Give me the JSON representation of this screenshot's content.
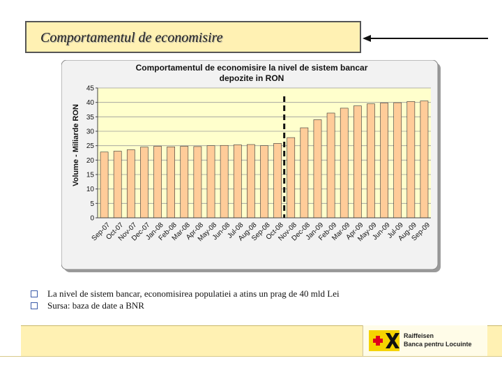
{
  "slide": {
    "title": "Comportamentul de economisire",
    "bullets": [
      "La nivel de sistem bancar, economisirea populatiei a atins un prag de 40 mld Lei",
      "Sursa: baza de date a BNR"
    ],
    "logo": {
      "name": "Raiffeisen",
      "subtitle": "Banca pentru Locuinte"
    }
  },
  "colors": {
    "title_bg": "#fff1b3",
    "bar_fill": "#ffcc99",
    "plot_bg": "#ffffcc",
    "accent_yellow": "#f5d400"
  },
  "chart_data": {
    "type": "bar",
    "title": "Comportamentul de economisire la nivel de sistem bancar",
    "subtitle": "depozite in RON",
    "xlabel": "",
    "ylabel": "Volume - Miliarde RON",
    "ylim": [
      0,
      45
    ],
    "yticks": [
      0,
      5,
      10,
      15,
      20,
      25,
      30,
      35,
      40,
      45
    ],
    "grid": true,
    "legend": "none",
    "marker_after_category": "Oct-08",
    "categories": [
      "Sep-07",
      "Oct-07",
      "Nov-07",
      "Dec-07",
      "Jan-08",
      "Feb-08",
      "Mar-08",
      "Apr-08",
      "May-08",
      "Jun-08",
      "Jul-08",
      "Aug-08",
      "Sep-08",
      "Oct-08",
      "Nov-08",
      "Dec-08",
      "Jan-09",
      "Feb-09",
      "Mar-09",
      "Apr-09",
      "May-09",
      "Jun-09",
      "Jul-09",
      "Aug-09",
      "Sep-09"
    ],
    "values": [
      22.8,
      23.1,
      23.6,
      24.5,
      24.8,
      24.6,
      24.8,
      24.7,
      25.0,
      25.1,
      25.3,
      25.4,
      25.0,
      25.8,
      27.8,
      31.2,
      34.0,
      36.3,
      38.0,
      38.8,
      39.5,
      39.8,
      39.9,
      40.3,
      40.5
    ]
  }
}
